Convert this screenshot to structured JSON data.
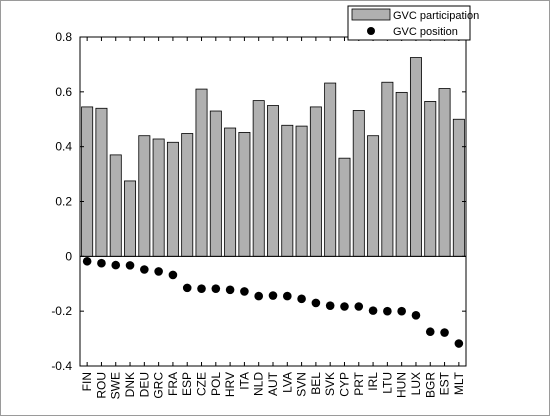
{
  "chart_data": {
    "type": "bar",
    "title": "",
    "xlabel": "",
    "ylabel": "",
    "ylim": [
      -0.4,
      0.8
    ],
    "yticks": [
      -0.4,
      -0.2,
      0,
      0.2,
      0.4,
      0.6,
      0.8
    ],
    "ytick_labels": [
      "-0.4",
      "-0.2",
      "0",
      "0.2",
      "0.4",
      "0.6",
      "0.8"
    ],
    "grid": false,
    "legend_position": "top-right",
    "categories": [
      "FIN",
      "ROU",
      "SWE",
      "DNK",
      "DEU",
      "GRC",
      "FRA",
      "ESP",
      "CZE",
      "POL",
      "HRV",
      "ITA",
      "NLD",
      "AUT",
      "LVA",
      "SVN",
      "BEL",
      "SVK",
      "CYP",
      "PRT",
      "IRL",
      "LTU",
      "HUN",
      "LUX",
      "BGR",
      "EST",
      "MLT"
    ],
    "series": [
      {
        "name": "GVC participation",
        "type": "bar",
        "color": "#b0b0b0",
        "values": [
          0.545,
          0.54,
          0.37,
          0.275,
          0.44,
          0.428,
          0.416,
          0.448,
          0.61,
          0.53,
          0.468,
          0.452,
          0.568,
          0.55,
          0.478,
          0.475,
          0.545,
          0.632,
          0.358,
          0.532,
          0.44,
          0.635,
          0.598,
          0.725,
          0.565,
          0.612,
          0.5
        ]
      },
      {
        "name": "GVC position",
        "type": "scatter",
        "color": "#000000",
        "values": [
          -0.018,
          -0.025,
          -0.032,
          -0.033,
          -0.048,
          -0.055,
          -0.068,
          -0.115,
          -0.118,
          -0.118,
          -0.122,
          -0.128,
          -0.145,
          -0.143,
          -0.145,
          -0.155,
          -0.17,
          -0.18,
          -0.183,
          -0.183,
          -0.198,
          -0.2,
          -0.2,
          -0.215,
          -0.275,
          -0.278,
          -0.318
        ]
      }
    ]
  }
}
